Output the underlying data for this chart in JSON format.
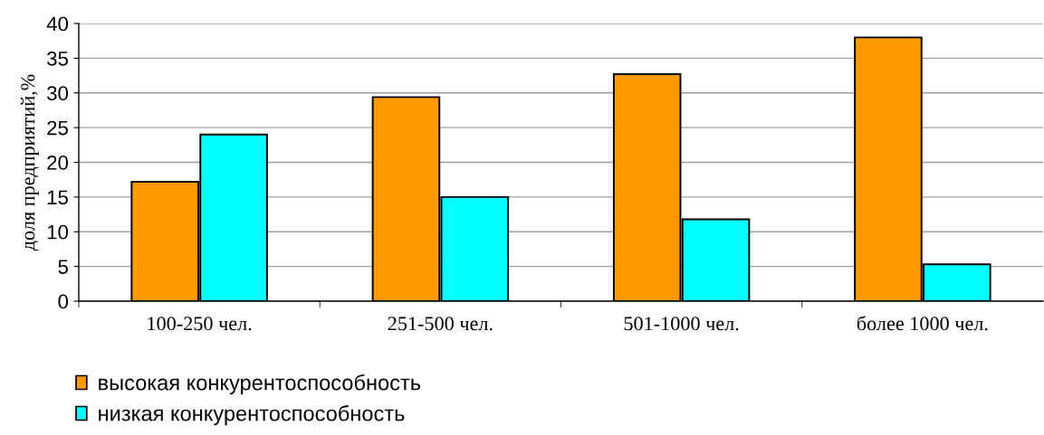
{
  "chart_data": {
    "type": "bar",
    "ylabel": "доля предприятий,%",
    "categories": [
      "100-250 чел.",
      "251-500 чел.",
      "501-1000 чел.",
      "более 1000 чел."
    ],
    "series": [
      {
        "name": "высокая конкурентоспособность",
        "color": "#ff9900",
        "values": [
          17.2,
          29.4,
          32.7,
          38.0
        ]
      },
      {
        "name": "низкая конкурентоспособность",
        "color": "#00ffff",
        "values": [
          24.0,
          15.0,
          11.8,
          5.3
        ]
      }
    ],
    "ylim": [
      0,
      40
    ],
    "yticks": [
      0,
      5,
      10,
      15,
      20,
      25,
      30,
      35,
      40
    ],
    "grid": "y",
    "legend": "bottom left"
  }
}
